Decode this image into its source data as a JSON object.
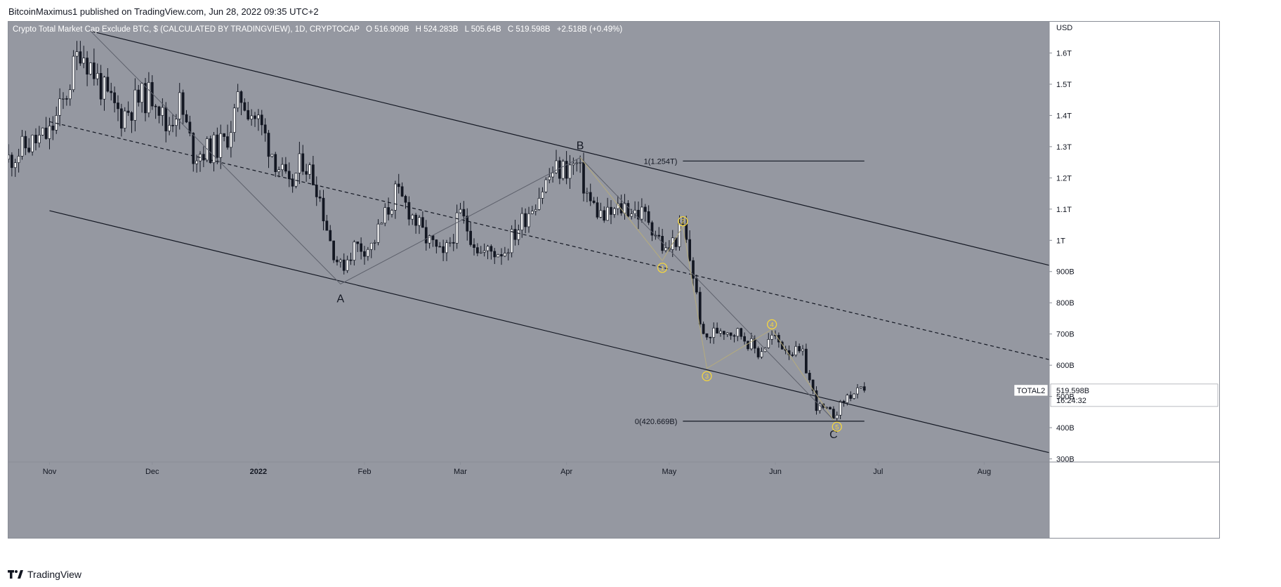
{
  "header": {
    "published_by": "BitcoinMaximus1 published on TradingView.com, Jun 28, 2022 09:35 UTC+2"
  },
  "footer": {
    "brand": "TradingView"
  },
  "legend": {
    "symbol_title": "Crypto Total Market Cap Exclude BTC, $ (CALCULATED BY TRADINGVIEW), 1D, CRYPTOCAP",
    "o_label": "O",
    "o_value": "516.909B",
    "h_label": "H",
    "h_value": "524.283B",
    "l_label": "L",
    "l_value": "505.64B",
    "c_label": "C",
    "c_value": "519.598B",
    "change": "+2.518B (+0.49%)"
  },
  "price_badge": {
    "symbol": "TOTAL2",
    "price": "519.598B",
    "countdown": "16:24:32"
  },
  "colors": {
    "background": "#9598a1",
    "bull": "#ffffff",
    "bear": "#131722",
    "wave_circle": "#f5d63d"
  },
  "chart_data": {
    "type": "candlestick",
    "title": "Crypto Total Market Cap Exclude BTC, $ (CALCULATED BY TRADINGVIEW), 1D, CRYPTOCAP",
    "y_unit": "USD",
    "ylim": [
      290,
      1700
    ],
    "y_ticks": [
      {
        "v": 1600,
        "label": "1.6T"
      },
      {
        "v": 1500,
        "label": "1.5T"
      },
      {
        "v": 1400,
        "label": "1.4T"
      },
      {
        "v": 1300,
        "label": "1.3T"
      },
      {
        "v": 1200,
        "label": "1.2T"
      },
      {
        "v": 1100,
        "label": "1.1T"
      },
      {
        "v": 1000,
        "label": "1T"
      },
      {
        "v": 900,
        "label": "900B"
      },
      {
        "v": 800,
        "label": "800B"
      },
      {
        "v": 700,
        "label": "700B"
      },
      {
        "v": 600,
        "label": "600B"
      },
      {
        "v": 500,
        "label": "500B"
      },
      {
        "v": 400,
        "label": "400B"
      },
      {
        "v": 300,
        "label": "300B"
      }
    ],
    "x_range": [
      "2021-10-20",
      "2022-08-20"
    ],
    "x_ticks": [
      {
        "date": "2021-11-01",
        "label": "Nov"
      },
      {
        "date": "2021-12-01",
        "label": "Dec"
      },
      {
        "date": "2022-01-01",
        "label": "2022"
      },
      {
        "date": "2022-02-01",
        "label": "Feb"
      },
      {
        "date": "2022-03-01",
        "label": "Mar"
      },
      {
        "date": "2022-04-01",
        "label": "Apr"
      },
      {
        "date": "2022-05-01",
        "label": "May"
      },
      {
        "date": "2022-06-01",
        "label": "Jun"
      },
      {
        "date": "2022-07-01",
        "label": "Jul"
      },
      {
        "date": "2022-08-01",
        "label": "Aug"
      }
    ],
    "close_path": [
      [
        "2021-10-20",
        1260
      ],
      [
        "2021-10-25",
        1300
      ],
      [
        "2021-11-01",
        1340
      ],
      [
        "2021-11-05",
        1440
      ],
      [
        "2021-11-10",
        1620
      ],
      [
        "2021-11-13",
        1560
      ],
      [
        "2021-11-18",
        1450
      ],
      [
        "2021-11-22",
        1400
      ],
      [
        "2021-11-27",
        1450
      ],
      [
        "2021-12-02",
        1470
      ],
      [
        "2021-12-05",
        1360
      ],
      [
        "2021-12-09",
        1440
      ],
      [
        "2021-12-13",
        1280
      ],
      [
        "2021-12-18",
        1290
      ],
      [
        "2021-12-22",
        1310
      ],
      [
        "2021-12-27",
        1460
      ],
      [
        "2022-01-01",
        1380
      ],
      [
        "2022-01-06",
        1260
      ],
      [
        "2022-01-10",
        1160
      ],
      [
        "2022-01-14",
        1260
      ],
      [
        "2022-01-18",
        1180
      ],
      [
        "2022-01-22",
        1000
      ],
      [
        "2022-01-25",
        910
      ],
      [
        "2022-01-29",
        980
      ],
      [
        "2022-02-03",
        980
      ],
      [
        "2022-02-10",
        1150
      ],
      [
        "2022-02-14",
        1100
      ],
      [
        "2022-02-18",
        1020
      ],
      [
        "2022-02-24",
        940
      ],
      [
        "2022-03-01",
        1080
      ],
      [
        "2022-03-07",
        960
      ],
      [
        "2022-03-14",
        970
      ],
      [
        "2022-03-20",
        1080
      ],
      [
        "2022-03-28",
        1220
      ],
      [
        "2022-04-04",
        1240
      ],
      [
        "2022-04-08",
        1120
      ],
      [
        "2022-04-12",
        1070
      ],
      [
        "2022-04-18",
        1110
      ],
      [
        "2022-04-25",
        1070
      ],
      [
        "2022-04-30",
        960
      ],
      [
        "2022-05-05",
        1040
      ],
      [
        "2022-05-08",
        890
      ],
      [
        "2022-05-11",
        680
      ],
      [
        "2022-05-16",
        720
      ],
      [
        "2022-05-22",
        700
      ],
      [
        "2022-05-27",
        640
      ],
      [
        "2022-05-31",
        690
      ],
      [
        "2022-06-05",
        650
      ],
      [
        "2022-06-09",
        630
      ],
      [
        "2022-06-13",
        470
      ],
      [
        "2022-06-18",
        440
      ],
      [
        "2022-06-22",
        500
      ],
      [
        "2022-06-27",
        519.598
      ]
    ],
    "last_price": 519.598,
    "channel": {
      "upper": [
        [
          "2021-11-13",
          1670
        ],
        [
          "2022-08-20",
          920
        ]
      ],
      "middle": [
        [
          "2021-11-01",
          1380
        ],
        [
          "2022-08-20",
          618
        ]
      ],
      "lower": [
        [
          "2021-11-01",
          1095
        ],
        [
          "2022-08-20",
          320
        ]
      ]
    },
    "abc_path": [
      [
        "2021-11-13",
        1670
      ],
      [
        "2022-01-25",
        860
      ],
      [
        "2022-04-05",
        1265
      ],
      [
        "2022-06-18",
        425
      ]
    ],
    "impulse_path": [
      [
        "2022-04-05",
        1265
      ],
      [
        "2022-04-29",
        935
      ],
      [
        "2022-05-05",
        1045
      ],
      [
        "2022-05-12",
        590
      ],
      [
        "2022-05-31",
        715
      ],
      [
        "2022-06-18",
        425
      ]
    ],
    "wave_labels": [
      {
        "label": "A",
        "date": "2022-01-25",
        "value": 860,
        "pos": "below"
      },
      {
        "label": "B",
        "date": "2022-04-05",
        "value": 1265,
        "pos": "above"
      },
      {
        "label": "C",
        "date": "2022-06-18",
        "value": 425,
        "pos": "below"
      }
    ],
    "impulse_labels": [
      {
        "label": "1",
        "date": "2022-04-29",
        "value": 912
      },
      {
        "label": "2",
        "date": "2022-05-05",
        "value": 1061
      },
      {
        "label": "3",
        "date": "2022-05-12",
        "value": 565
      },
      {
        "label": "4",
        "date": "2022-05-31",
        "value": 731
      },
      {
        "label": "5",
        "date": "2022-06-19",
        "value": 403
      }
    ],
    "fib_levels": [
      {
        "label": "1(1.254T)",
        "value": 1254,
        "start": "2022-05-05",
        "end": "2022-06-27"
      },
      {
        "label": "0(420.669B)",
        "value": 420.669,
        "start": "2022-05-05",
        "end": "2022-06-27"
      }
    ]
  }
}
